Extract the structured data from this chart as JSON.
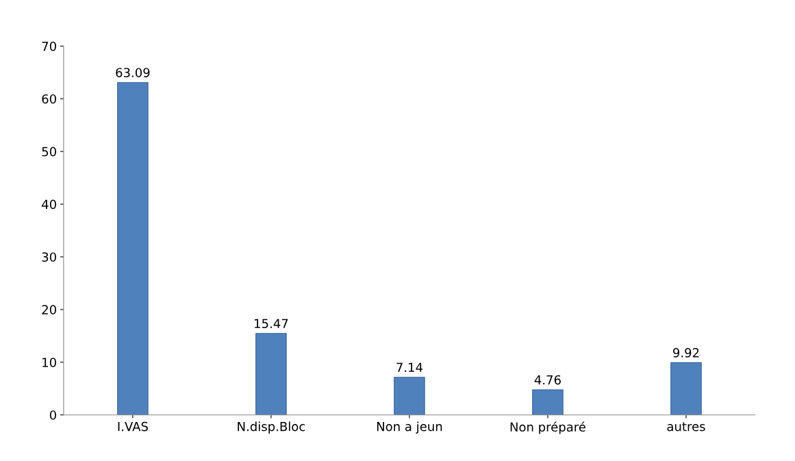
{
  "chart_data": {
    "type": "bar",
    "categories": [
      "I.VAS",
      "N.disp.Bloc",
      "Non a jeun",
      "Non préparé",
      "autres"
    ],
    "values": [
      63.09,
      15.47,
      7.14,
      4.76,
      9.92
    ],
    "color": "#4f81bd",
    "ylim": [
      0,
      70
    ],
    "yticks": [
      0,
      10,
      20,
      30,
      40,
      50,
      60,
      70
    ],
    "grid": false,
    "data_labels": true,
    "legend": false
  }
}
